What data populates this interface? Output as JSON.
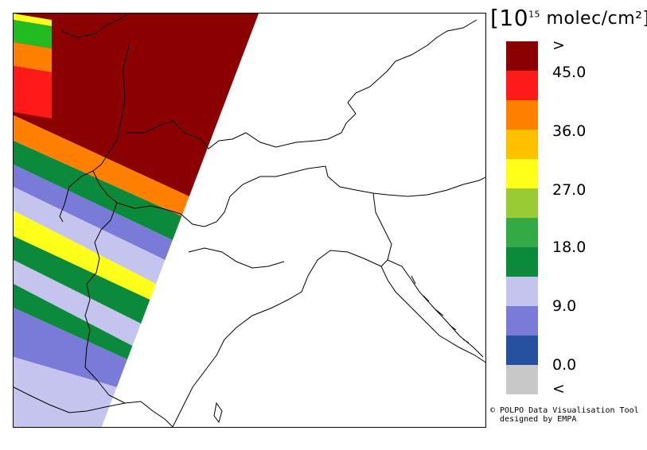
{
  "legend": {
    "unit_prefix": "[10",
    "unit_exp": "15",
    "unit_suffix": " molec/cm²]",
    "labels": [
      ">",
      "45.0",
      "36.0",
      "27.0",
      "18.0",
      "9.0",
      "0.0",
      "<"
    ],
    "colors": [
      "#8b0000",
      "#ff1a1a",
      "#ff8000",
      "#ffc000",
      "#ffff1a",
      "#99cc33",
      "#33aa44",
      "#0a8a3a",
      "#c4c4ee",
      "#7a7ad8",
      "#2650a0",
      "#c8c8c8"
    ]
  },
  "swath": {
    "bands": [
      {
        "color": "#8b0000"
      },
      {
        "color": "#ff8000"
      },
      {
        "color": "#0a8a3a"
      },
      {
        "color": "#7a7ad8"
      },
      {
        "color": "#c4c4ee"
      },
      {
        "color": "#ffff1a"
      },
      {
        "color": "#0a8a3a"
      },
      {
        "color": "#c4c4ee"
      },
      {
        "color": "#0a8a3a"
      },
      {
        "color": "#7a7ad8"
      },
      {
        "color": "#c4c4ee"
      }
    ],
    "edge_stripes": [
      {
        "color": "#ffff1a"
      },
      {
        "color": "#22bb22"
      },
      {
        "color": "#ff8000"
      },
      {
        "color": "#ff1a1a"
      }
    ]
  },
  "credit": {
    "line1": "© POLPO Data Visualisation Tool",
    "line2": "  designed by EMPA"
  }
}
